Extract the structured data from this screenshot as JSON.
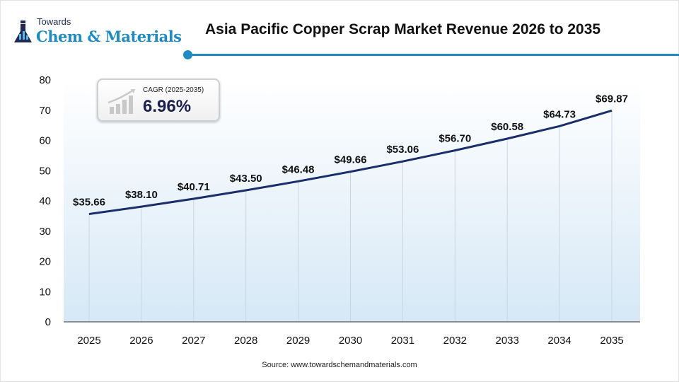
{
  "brand": {
    "line1": "Towards",
    "line2": "Chem & Materials"
  },
  "cagr": {
    "label": "CAGR (2025-2035)",
    "value": "6.96%"
  },
  "source": "Source: www.towardschemandmaterials.com",
  "colors": {
    "line": "#1a2e6b",
    "accent": "#1e8bc3"
  },
  "chart_data": {
    "type": "line",
    "title": "Asia Pacific Copper Scrap Market Revenue 2026 to 2035",
    "xlabel": "",
    "ylabel": "",
    "categories": [
      "2025",
      "2026",
      "2027",
      "2028",
      "2029",
      "2030",
      "2031",
      "2032",
      "2033",
      "2034",
      "2035"
    ],
    "values": [
      35.66,
      38.1,
      40.71,
      43.5,
      46.48,
      49.66,
      53.06,
      56.7,
      60.58,
      64.73,
      69.87
    ],
    "data_labels": [
      "$35.66",
      "$38.10",
      "$40.71",
      "$43.50",
      "$46.48",
      "$49.66",
      "$53.06",
      "$56.70",
      "$60.58",
      "$64.73",
      "$69.87"
    ],
    "yticks": [
      0,
      10,
      20,
      30,
      40,
      50,
      60,
      70,
      80
    ],
    "ylim": [
      0,
      80
    ],
    "grid": "vertical"
  }
}
